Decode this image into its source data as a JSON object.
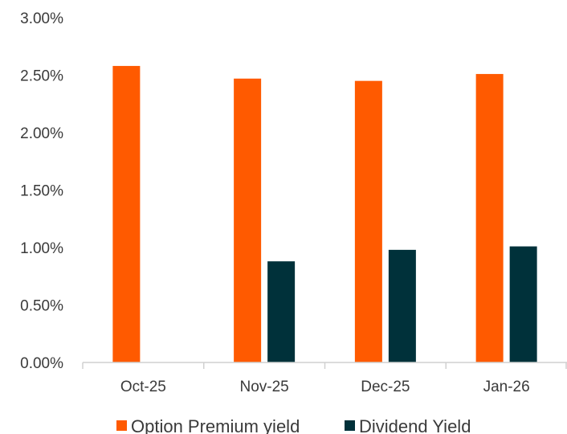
{
  "chart_data": {
    "type": "bar",
    "categories": [
      "Oct-25",
      "Nov-25",
      "Dec-25",
      "Jan-26"
    ],
    "series": [
      {
        "name": "Option Premium yield",
        "color": "#ff5a00",
        "values": [
          2.58,
          2.47,
          2.45,
          2.51
        ]
      },
      {
        "name": "Dividend Yield",
        "color": "#00313a",
        "values": [
          null,
          0.88,
          0.98,
          1.01
        ]
      }
    ],
    "y_ticks": [
      "0.00%",
      "0.50%",
      "1.00%",
      "1.50%",
      "2.00%",
      "2.50%",
      "3.00%"
    ],
    "ylim": [
      0,
      3
    ],
    "ylabel_unit": "%",
    "grid": false,
    "legend_position": "bottom",
    "title": "",
    "xlabel": "",
    "ylabel": ""
  }
}
